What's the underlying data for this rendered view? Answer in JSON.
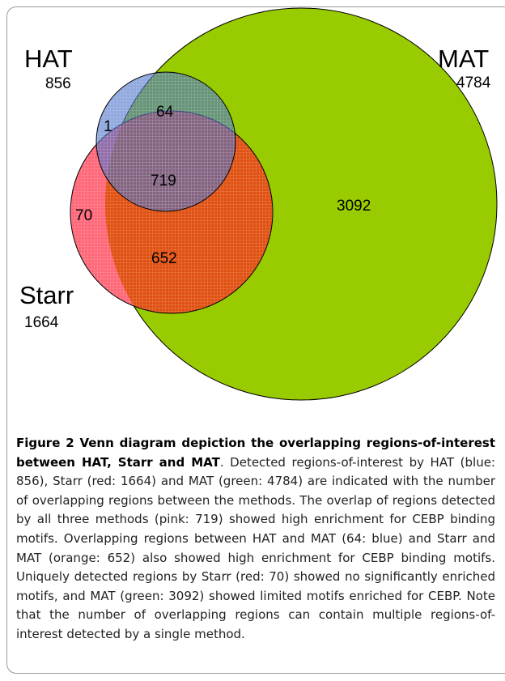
{
  "figure": {
    "sets": [
      {
        "name": "HAT",
        "total": 856
      },
      {
        "name": "MAT",
        "total": 4784
      },
      {
        "name": "Starr",
        "total": 1664
      }
    ],
    "regions": {
      "hat_starr": 1,
      "hat_mat": 64,
      "all_three": 719,
      "starr_only": 70,
      "starr_mat": 652,
      "mat_only": 3092
    },
    "caption": {
      "title": "Figure 2 Venn diagram depiction the overlapping regions-of-interest between HAT, Starr and MAT",
      "text": ". Detected regions-of-interest by HAT (blue: 856), Starr (red: 1664) and MAT (green: 4784) are indicated with the number of overlapping regions between the methods. The overlap of regions detected by all three methods (pink: 719) showed high enrichment for CEBP binding motifs. Overlapping regions between HAT and MAT (64: blue) and Starr and MAT (orange: 652) also showed high enrichment for CEBP binding motifs. Uniquely detected regions by Starr (red: 70) showed no significantly enriched motifs, and MAT (green: 3092) showed limited motifs enriched for CEBP. Note that the number of overlapping regions can contain multiple regions-of-interest detected by a single method."
    }
  }
}
